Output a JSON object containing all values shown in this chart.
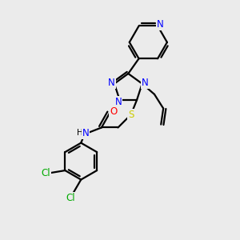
{
  "bg_color": "#ebebeb",
  "bond_color": "#000000",
  "bond_lw": 1.6,
  "atom_colors": {
    "N": "#0000FF",
    "S": "#CCCC00",
    "O": "#FF0000",
    "Cl": "#00AA00",
    "C": "#000000",
    "H": "#000000"
  },
  "font_size": 8.5
}
